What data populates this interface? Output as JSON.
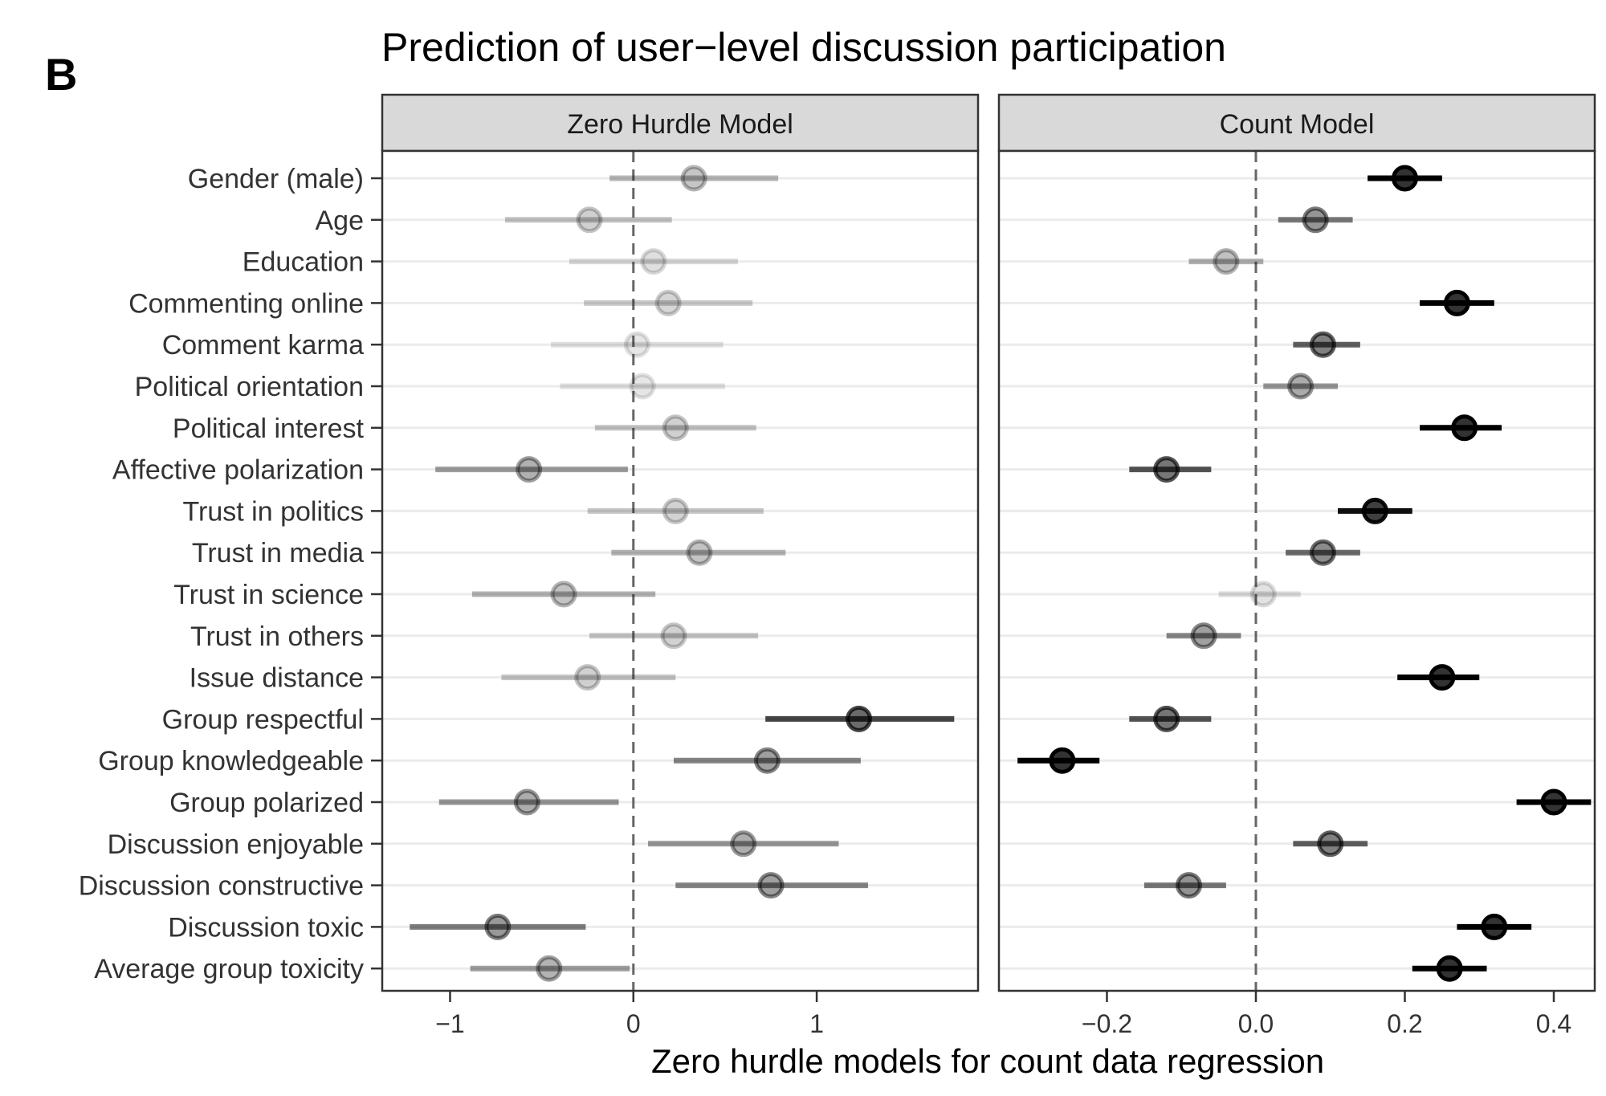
{
  "figure": {
    "panel_letter": "B",
    "title": "Prediction of user−level discussion participation",
    "xlabel": "Zero hurdle models for count data regression"
  },
  "chart_data": {
    "type": "coefficient-dot-whisker",
    "title": "Prediction of user−level discussion participation",
    "xlabel": "Zero hurdle models for count data regression",
    "ylabel": "",
    "grid": true,
    "reference_line": 0,
    "categories": [
      "Gender (male)",
      "Age",
      "Education",
      "Commenting online",
      "Comment karma",
      "Political orientation",
      "Political interest",
      "Affective polarization",
      "Trust in politics",
      "Trust in media",
      "Trust in science",
      "Trust in others",
      "Issue distance",
      "Group respectful",
      "Group knowledgeable",
      "Group polarized",
      "Discussion enjoyable",
      "Discussion constructive",
      "Discussion toxic",
      "Average group toxicity"
    ],
    "panels": [
      {
        "name": "Zero Hurdle Model",
        "xlim": [
          -1.37,
          1.88
        ],
        "ticks": [
          -1,
          0,
          1
        ],
        "tick_labels": [
          "−1",
          "0",
          "1"
        ],
        "estimates": [
          0.33,
          -0.24,
          0.11,
          0.19,
          0.02,
          0.05,
          0.23,
          -0.57,
          0.23,
          0.36,
          -0.38,
          0.22,
          -0.25,
          1.23,
          0.73,
          -0.58,
          0.6,
          0.75,
          -0.74,
          -0.46
        ],
        "lower": [
          -0.13,
          -0.7,
          -0.35,
          -0.27,
          -0.45,
          -0.4,
          -0.21,
          -1.08,
          -0.25,
          -0.12,
          -0.88,
          -0.24,
          -0.72,
          0.72,
          0.22,
          -1.06,
          0.08,
          0.23,
          -1.22,
          -0.89
        ],
        "upper": [
          0.79,
          0.21,
          0.57,
          0.65,
          0.49,
          0.5,
          0.67,
          -0.03,
          0.71,
          0.83,
          0.12,
          0.68,
          0.23,
          1.75,
          1.24,
          -0.08,
          1.12,
          1.28,
          -0.26,
          -0.02
        ]
      },
      {
        "name": "Count Model",
        "xlim": [
          -0.345,
          0.455
        ],
        "ticks": [
          -0.2,
          0.0,
          0.2,
          0.4
        ],
        "tick_labels": [
          "−0.2",
          "0.0",
          "0.2",
          "0.4"
        ],
        "estimates": [
          0.2,
          0.08,
          -0.04,
          0.27,
          0.09,
          0.06,
          0.28,
          -0.12,
          0.16,
          0.09,
          0.01,
          -0.07,
          0.25,
          -0.12,
          -0.26,
          0.4,
          0.1,
          -0.09,
          0.32,
          0.26
        ],
        "lower": [
          0.15,
          0.03,
          -0.09,
          0.22,
          0.05,
          0.01,
          0.22,
          -0.17,
          0.11,
          0.04,
          -0.05,
          -0.12,
          0.19,
          -0.17,
          -0.32,
          0.35,
          0.05,
          -0.15,
          0.27,
          0.21
        ],
        "upper": [
          0.25,
          0.13,
          0.01,
          0.32,
          0.14,
          0.11,
          0.33,
          -0.06,
          0.21,
          0.14,
          0.06,
          -0.02,
          0.3,
          -0.06,
          -0.21,
          0.45,
          0.15,
          -0.04,
          0.37,
          0.31
        ]
      }
    ]
  }
}
